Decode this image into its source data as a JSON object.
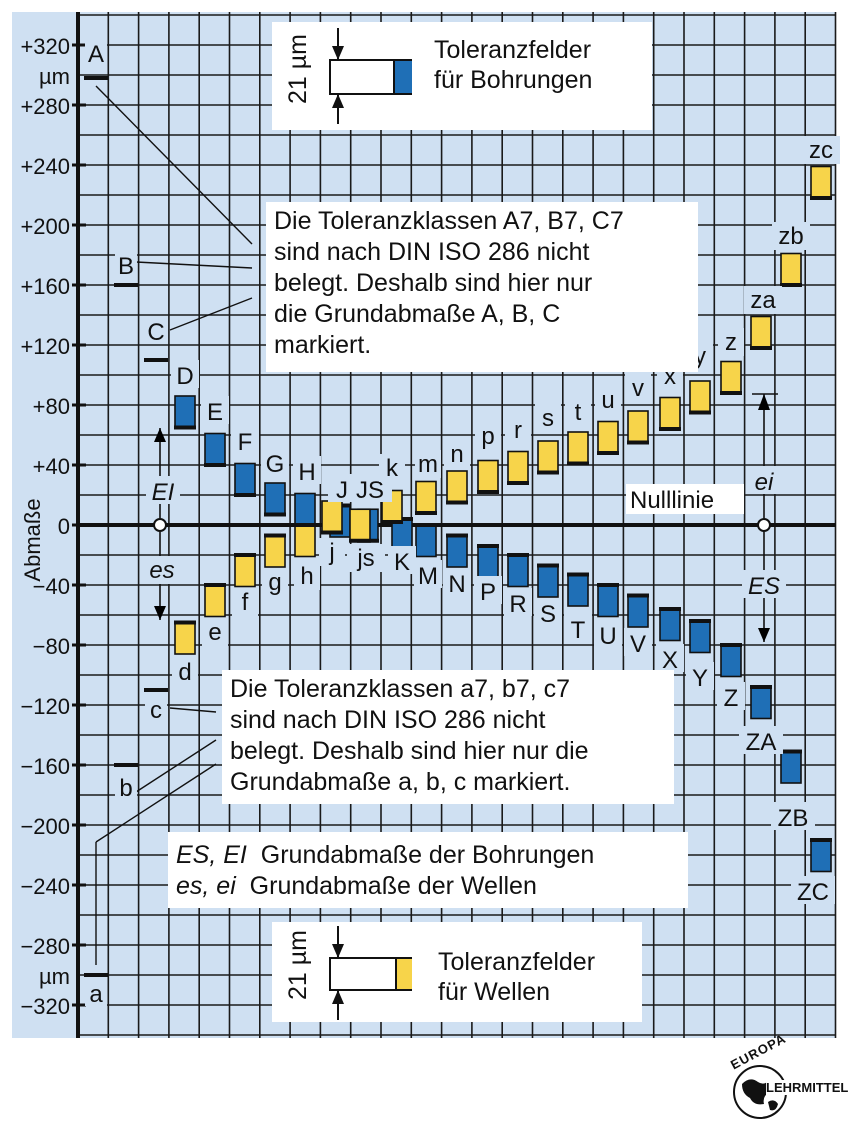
{
  "chart_data": {
    "type": "tolerance-field-diagram",
    "y_axis": {
      "label": "Abmaße",
      "unit": "µm",
      "range": [
        -330,
        330
      ],
      "tick_step": 20,
      "labels": [
        {
          "v": 320,
          "t": "+320"
        },
        {
          "v": 280,
          "t": "+280"
        },
        {
          "v": 240,
          "t": "+240"
        },
        {
          "v": 200,
          "t": "+200"
        },
        {
          "v": 160,
          "t": "+160"
        },
        {
          "v": 120,
          "t": "+120"
        },
        {
          "v": 80,
          "t": "+80"
        },
        {
          "v": 40,
          "t": "+40"
        },
        {
          "v": 0,
          "t": "0"
        },
        {
          "v": -40,
          "t": "−40"
        },
        {
          "v": -80,
          "t": "−80"
        },
        {
          "v": -120,
          "t": "−120"
        },
        {
          "v": -160,
          "t": "−160"
        },
        {
          "v": -200,
          "t": "−200"
        },
        {
          "v": -240,
          "t": "−240"
        },
        {
          "v": -280,
          "t": "−280"
        },
        {
          "v": -320,
          "t": "−320"
        }
      ]
    },
    "zero_line_label": "Nulllinie",
    "field_width_um": 21,
    "bores_marks_only": [
      {
        "name": "A",
        "deviation": 298
      },
      {
        "name": "B",
        "deviation": 160
      },
      {
        "name": "C",
        "deviation": 110
      }
    ],
    "bores": [
      {
        "name": "D",
        "ei": 65,
        "es": 86
      },
      {
        "name": "E",
        "ei": 40,
        "es": 61
      },
      {
        "name": "F",
        "ei": 20,
        "es": 41
      },
      {
        "name": "G",
        "ei": 7,
        "es": 28
      },
      {
        "name": "H",
        "ei": 0,
        "es": 21
      },
      {
        "name": "J",
        "ei": -8,
        "es": 13
      },
      {
        "name": "JS",
        "ei": -10.5,
        "es": 10.5
      },
      {
        "name": "K",
        "ei": -17,
        "es": 4
      },
      {
        "name": "M",
        "ei": -21,
        "es": 0
      },
      {
        "name": "N",
        "ei": -28,
        "es": -7
      },
      {
        "name": "P",
        "ei": -35,
        "es": -14
      },
      {
        "name": "R",
        "ei": -41,
        "es": -20
      },
      {
        "name": "S",
        "ei": -48,
        "es": -27
      },
      {
        "name": "T",
        "ei": -54,
        "es": -33
      },
      {
        "name": "U",
        "ei": -61,
        "es": -40
      },
      {
        "name": "V",
        "ei": -68,
        "es": -47
      },
      {
        "name": "X",
        "ei": -77,
        "es": -56
      },
      {
        "name": "Y",
        "ei": -85,
        "es": -64
      },
      {
        "name": "Z",
        "ei": -101,
        "es": -80
      },
      {
        "name": "ZA",
        "ei": -129,
        "es": -108
      },
      {
        "name": "ZB",
        "ei": -172,
        "es": -151
      },
      {
        "name": "ZC",
        "ei": -231,
        "es": -210
      }
    ],
    "shafts_marks_only": [
      {
        "name": "a",
        "deviation": -300
      },
      {
        "name": "b",
        "deviation": -160
      },
      {
        "name": "c",
        "deviation": -110
      }
    ],
    "shafts": [
      {
        "name": "d",
        "ei": -86,
        "es": -65
      },
      {
        "name": "e",
        "ei": -61,
        "es": -40
      },
      {
        "name": "f",
        "ei": -41,
        "es": -20
      },
      {
        "name": "g",
        "ei": -28,
        "es": -7
      },
      {
        "name": "h",
        "ei": -21,
        "es": 0
      },
      {
        "name": "j",
        "ei": -5,
        "es": 16
      },
      {
        "name": "js",
        "ei": -10.5,
        "es": 10.5
      },
      {
        "name": "k",
        "ei": 2,
        "es": 23
      },
      {
        "name": "m",
        "ei": 8,
        "es": 29
      },
      {
        "name": "n",
        "ei": 15,
        "es": 36
      },
      {
        "name": "p",
        "ei": 22,
        "es": 43
      },
      {
        "name": "r",
        "ei": 28,
        "es": 49
      },
      {
        "name": "s",
        "ei": 35,
        "es": 56
      },
      {
        "name": "t",
        "ei": 41,
        "es": 62
      },
      {
        "name": "u",
        "ei": 48,
        "es": 69
      },
      {
        "name": "v",
        "ei": 55,
        "es": 76
      },
      {
        "name": "x",
        "ei": 64,
        "es": 85
      },
      {
        "name": "y",
        "ei": 75,
        "es": 96
      },
      {
        "name": "z",
        "ei": 88,
        "es": 109
      },
      {
        "name": "za",
        "ei": 118,
        "es": 139
      },
      {
        "name": "zb",
        "ei": 160,
        "es": 181
      },
      {
        "name": "zc",
        "ei": 218,
        "es": 239
      }
    ],
    "colors": {
      "bore": "#1f6fb6",
      "shaft": "#f7d44a",
      "grid": "#1a1a1a",
      "background": "#cfe0f2"
    }
  },
  "annotations": {
    "EI": "EI",
    "es": "es",
    "ei": "ei",
    "ES": "ES"
  },
  "note_bores": [
    "Die Toleranzklassen A7, B7, C7",
    "sind nach DIN ISO 286 nicht",
    "belegt. Deshalb sind hier nur",
    "die Grundabmaße A, B, C",
    "markiert."
  ],
  "note_shafts": [
    "Die Toleranzklassen a7, b7, c7",
    "sind nach DIN ISO 286 nicht",
    "belegt. Deshalb sind hier nur die",
    "Grundabmaße a, b, c markiert."
  ],
  "definitions": [
    {
      "symbols": "ES, EI",
      "text": "Grundabmaße der Bohrungen"
    },
    {
      "symbols": "es, ei",
      "text": "Grundabmaße der Wellen"
    }
  ],
  "legend_top": {
    "size": "21 µm",
    "line1": "Toleranzfelder",
    "line2": "für Bohrungen"
  },
  "legend_bottom": {
    "size": "21 µm",
    "line1": "Toleranzfelder",
    "line2": "für Wellen"
  },
  "logo": {
    "text_top": "EUROPA",
    "text_bottom": "LEHRMITTEL"
  }
}
